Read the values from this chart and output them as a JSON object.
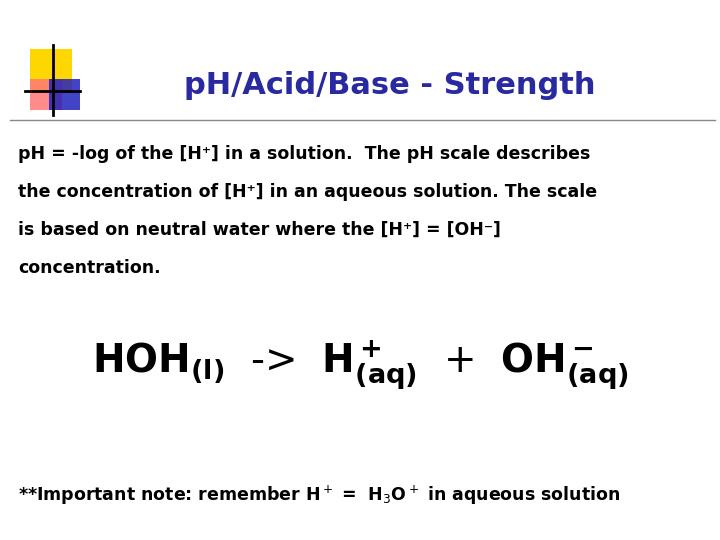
{
  "title": "pH/Acid/Base - Strength",
  "title_color": "#2929a0",
  "title_fontsize": 22,
  "bg_color": "#ffffff",
  "body_text_color": "#000000",
  "body_fontsize": 12.5,
  "body_lines": [
    "pH = -log of the [H⁺] in a solution.  The pH scale describes",
    "the concentration of [H⁺] in an aqueous solution. The scale",
    "is based on neutral water where the [H⁺] = [OH⁻]",
    "concentration."
  ],
  "yellow_color": "#FFD700",
  "red_color": "#FF7777",
  "blue_color": "#2222BB",
  "separator_color": "#888888"
}
